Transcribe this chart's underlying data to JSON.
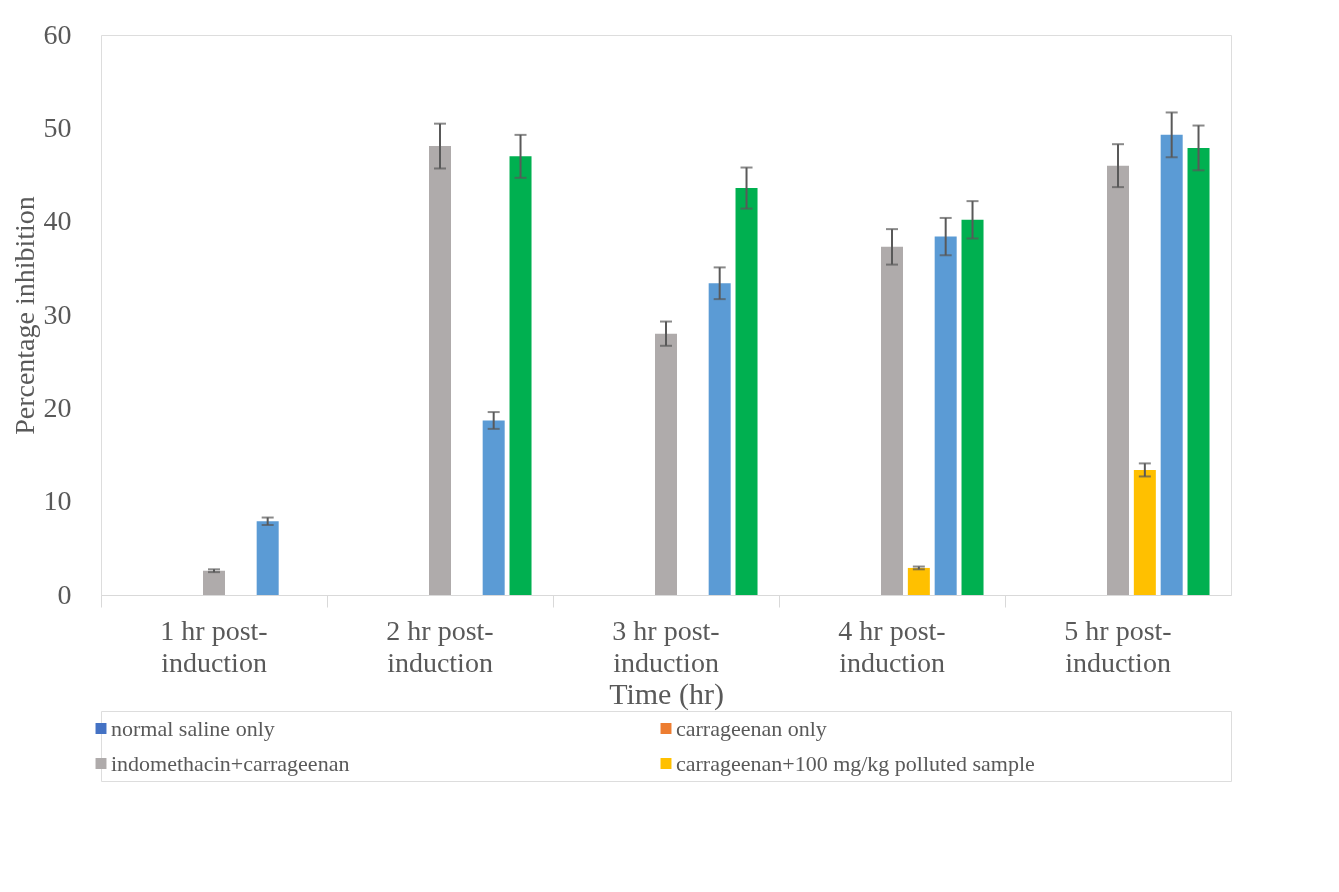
{
  "chart_data": {
    "type": "bar",
    "xlabel": "Time (hr)",
    "ylabel": "Percentage inhibition",
    "categories": [
      "1 hr post-induction",
      "2 hr post-induction",
      "3 hr post-induction",
      "4 hr post-induction",
      "5 hr post-induction"
    ],
    "series": [
      {
        "name": "normal saline only",
        "color": "#4472c4",
        "values": [
          0,
          0,
          0,
          0,
          0
        ]
      },
      {
        "name": "carrageenan only",
        "color": "#ed7d31",
        "values": [
          0,
          0,
          0,
          0,
          0
        ]
      },
      {
        "color": "#a5a5a5",
        "values": [
          0,
          0,
          0,
          0,
          0
        ]
      },
      {
        "name": "indomethacin+carrageenan",
        "color": "#afabab",
        "values": [
          2.6,
          48.1,
          28.0,
          37.3,
          46.0
        ],
        "errors": [
          0.15,
          2.4,
          1.3,
          1.9,
          2.3
        ]
      },
      {
        "name": "carrageenan+100 mg/kg polluted sample",
        "color": "#ffc000",
        "values": [
          0,
          0,
          0,
          2.9,
          13.4
        ],
        "errors": [
          null,
          null,
          null,
          0.15,
          0.7
        ]
      },
      {
        "color": "#5b9bd5",
        "values": [
          7.9,
          18.7,
          33.4,
          38.4,
          49.3
        ],
        "errors": [
          0.4,
          0.9,
          1.7,
          2.0,
          2.4
        ]
      },
      {
        "color": "#00b050",
        "values": [
          0,
          47.0,
          43.6,
          40.2,
          47.9
        ],
        "errors": [
          null,
          2.3,
          2.2,
          2.0,
          2.4
        ]
      }
    ],
    "ylim": [
      0,
      60
    ],
    "yticks": [
      0,
      10,
      20,
      30,
      40,
      50,
      60
    ],
    "grid": false,
    "legend": "bottom"
  }
}
